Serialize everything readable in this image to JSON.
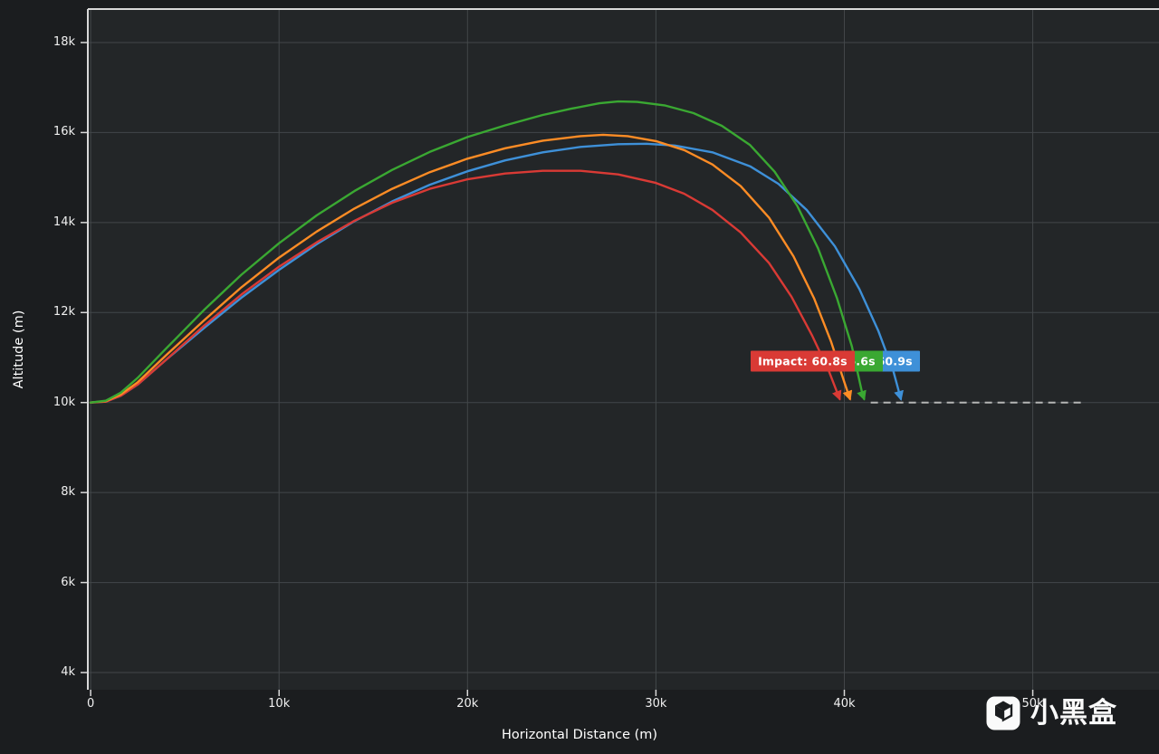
{
  "theme": {
    "background": "#1b1d1f",
    "plot_background": "#232628",
    "grid": "#43474a",
    "spine": "#d9d9d9",
    "tick_mark": "#d9d9d9",
    "tick_text": "#f0f0f0",
    "axis_title_text": "#ffffff",
    "baseline": "#b5b5b5"
  },
  "watermark": {
    "text": "小黑盒"
  },
  "chart_data": {
    "type": "line",
    "title": "",
    "xlabel": "Horizontal Distance (m)",
    "ylabel": "Altitude (m)",
    "xlim": [
      -150,
      56700
    ],
    "ylim": [
      3618,
      18744
    ],
    "grid": true,
    "legend": "none",
    "x_ticks": [
      {
        "v": 0,
        "label": "0"
      },
      {
        "v": 10000,
        "label": "10k"
      },
      {
        "v": 20000,
        "label": "20k"
      },
      {
        "v": 30000,
        "label": "30k"
      },
      {
        "v": 40000,
        "label": "40k"
      },
      {
        "v": 50000,
        "label": "50k"
      }
    ],
    "y_ticks": [
      {
        "v": 4000,
        "label": "4k"
      },
      {
        "v": 6000,
        "label": "6k"
      },
      {
        "v": 8000,
        "label": "8k"
      },
      {
        "v": 10000,
        "label": "10k"
      },
      {
        "v": 12000,
        "label": "12k"
      },
      {
        "v": 14000,
        "label": "14k"
      },
      {
        "v": 16000,
        "label": "16k"
      },
      {
        "v": 18000,
        "label": "18k"
      }
    ],
    "baseline": {
      "y": 10000,
      "x_start": 41400,
      "x_end": 52750,
      "style": "dashed"
    },
    "series": [
      {
        "id": "blue",
        "name": "blue-trajectory",
        "color": "#3e90d8",
        "start_altitude_m": 10000,
        "peak_altitude_m": 15750,
        "impact_x_m": 43000,
        "points": [
          [
            0,
            10000
          ],
          [
            800,
            10020
          ],
          [
            1600,
            10150
          ],
          [
            2500,
            10400
          ],
          [
            4000,
            10950
          ],
          [
            6000,
            11650
          ],
          [
            8000,
            12330
          ],
          [
            10000,
            12950
          ],
          [
            12000,
            13520
          ],
          [
            14000,
            14030
          ],
          [
            16000,
            14470
          ],
          [
            18000,
            14840
          ],
          [
            20000,
            15140
          ],
          [
            22000,
            15380
          ],
          [
            24000,
            15560
          ],
          [
            26000,
            15680
          ],
          [
            28000,
            15740
          ],
          [
            29500,
            15750
          ],
          [
            31000,
            15710
          ],
          [
            33000,
            15560
          ],
          [
            35000,
            15250
          ],
          [
            36500,
            14860
          ],
          [
            38000,
            14280
          ],
          [
            39500,
            13470
          ],
          [
            40800,
            12520
          ],
          [
            41800,
            11600
          ],
          [
            42600,
            10700
          ],
          [
            43000,
            10080
          ]
        ]
      },
      {
        "id": "red",
        "name": "red-trajectory",
        "color": "#d93a35",
        "start_altitude_m": 10000,
        "peak_altitude_m": 15150,
        "impact_x_m": 39750,
        "points": [
          [
            0,
            10000
          ],
          [
            800,
            10020
          ],
          [
            1600,
            10150
          ],
          [
            2500,
            10400
          ],
          [
            4000,
            10950
          ],
          [
            6000,
            11700
          ],
          [
            8000,
            12400
          ],
          [
            10000,
            13020
          ],
          [
            12000,
            13560
          ],
          [
            14000,
            14040
          ],
          [
            16000,
            14440
          ],
          [
            18000,
            14750
          ],
          [
            20000,
            14960
          ],
          [
            22000,
            15090
          ],
          [
            24000,
            15150
          ],
          [
            26000,
            15150
          ],
          [
            28000,
            15070
          ],
          [
            30000,
            14880
          ],
          [
            31500,
            14640
          ],
          [
            33000,
            14280
          ],
          [
            34500,
            13780
          ],
          [
            36000,
            13100
          ],
          [
            37200,
            12350
          ],
          [
            38300,
            11480
          ],
          [
            39200,
            10680
          ],
          [
            39750,
            10080
          ]
        ]
      },
      {
        "id": "orange",
        "name": "orange-trajectory",
        "color": "#fd8c25",
        "start_altitude_m": 10000,
        "peak_altitude_m": 15950,
        "impact_x_m": 40300,
        "points": [
          [
            0,
            10000
          ],
          [
            800,
            10030
          ],
          [
            1600,
            10180
          ],
          [
            2500,
            10450
          ],
          [
            4000,
            11050
          ],
          [
            6000,
            11820
          ],
          [
            8000,
            12560
          ],
          [
            10000,
            13220
          ],
          [
            12000,
            13800
          ],
          [
            14000,
            14310
          ],
          [
            16000,
            14750
          ],
          [
            18000,
            15120
          ],
          [
            20000,
            15420
          ],
          [
            22000,
            15650
          ],
          [
            24000,
            15820
          ],
          [
            26000,
            15920
          ],
          [
            27200,
            15950
          ],
          [
            28500,
            15920
          ],
          [
            30000,
            15810
          ],
          [
            31500,
            15610
          ],
          [
            33000,
            15290
          ],
          [
            34500,
            14810
          ],
          [
            36000,
            14110
          ],
          [
            37300,
            13250
          ],
          [
            38400,
            12310
          ],
          [
            39300,
            11350
          ],
          [
            40000,
            10450
          ],
          [
            40300,
            10080
          ]
        ]
      },
      {
        "id": "green",
        "name": "green-trajectory",
        "color": "#3aa832",
        "start_altitude_m": 10000,
        "peak_altitude_m": 16690,
        "impact_x_m": 41050,
        "points": [
          [
            0,
            10000
          ],
          [
            800,
            10040
          ],
          [
            1600,
            10220
          ],
          [
            2500,
            10550
          ],
          [
            4000,
            11200
          ],
          [
            6000,
            12050
          ],
          [
            8000,
            12840
          ],
          [
            10000,
            13540
          ],
          [
            12000,
            14160
          ],
          [
            14000,
            14700
          ],
          [
            16000,
            15170
          ],
          [
            18000,
            15570
          ],
          [
            20000,
            15900
          ],
          [
            22000,
            16160
          ],
          [
            24000,
            16390
          ],
          [
            25500,
            16530
          ],
          [
            27000,
            16650
          ],
          [
            28000,
            16690
          ],
          [
            29000,
            16680
          ],
          [
            30500,
            16600
          ],
          [
            32000,
            16430
          ],
          [
            33500,
            16150
          ],
          [
            35000,
            15720
          ],
          [
            36300,
            15130
          ],
          [
            37500,
            14370
          ],
          [
            38600,
            13430
          ],
          [
            39600,
            12330
          ],
          [
            40400,
            11250
          ],
          [
            40950,
            10200
          ],
          [
            41050,
            10080
          ]
        ]
      }
    ],
    "impact_labels": [
      {
        "id": "blue",
        "text": "Impact: 60.9s",
        "color": "#3e90d8",
        "x_m": 38490,
        "y_m": 10920,
        "z": 1
      },
      {
        "id": "green",
        "text": "Impact: 66.6s",
        "color": "#3aa832",
        "x_m": 36520,
        "y_m": 10920,
        "z": 2
      },
      {
        "id": "red",
        "text": "Impact: 60.8s",
        "color": "#d93a35",
        "x_m": 35030,
        "y_m": 10920,
        "z": 3
      }
    ]
  }
}
